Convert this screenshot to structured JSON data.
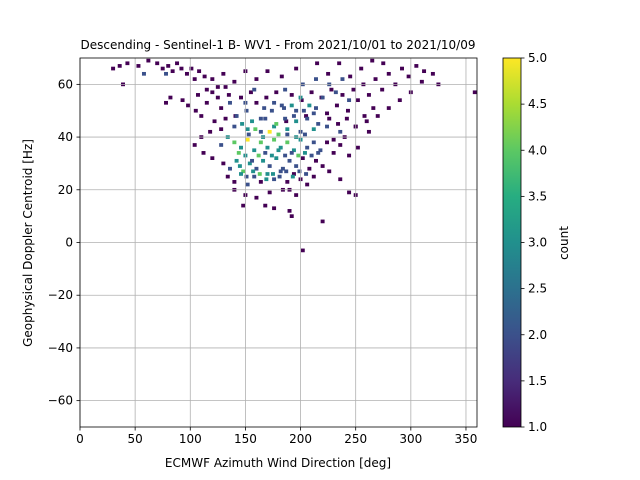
{
  "chart_data": {
    "type": "heatmap",
    "title": "Descending - Sentinel-1 B- WV1 - From 2021/10/01 to 2021/10/09",
    "xlabel": "ECMWF Azimuth Wind Direction [deg]",
    "ylabel": "Geophysical Doppler Centroid [Hz]",
    "xlim": [
      0,
      360
    ],
    "ylim": [
      -70,
      70
    ],
    "xticks": [
      "0",
      "50",
      "100",
      "150",
      "200",
      "250",
      "300",
      "350"
    ],
    "xtick_values": [
      0,
      50,
      100,
      150,
      200,
      250,
      300,
      350
    ],
    "yticks": [
      "60",
      "40",
      "20",
      "0",
      "−20",
      "−40",
      "−60"
    ],
    "ytick_values": [
      60,
      40,
      20,
      0,
      -20,
      -40,
      -60
    ],
    "grid": true,
    "bin_width_deg": 3.6,
    "bin_height_hz": 1.4,
    "colorbar": {
      "label": "count",
      "min": 1.0,
      "max": 5.0,
      "ticks": [
        "1.0",
        "1.5",
        "2.0",
        "2.5",
        "3.0",
        "3.5",
        "4.0",
        "4.5",
        "5.0"
      ],
      "tick_values": [
        1.0,
        1.5,
        2.0,
        2.5,
        3.0,
        3.5,
        4.0,
        4.5,
        5.0
      ],
      "colormap": "viridis"
    },
    "cells": [
      [
        30,
        66,
        1
      ],
      [
        36,
        67,
        1
      ],
      [
        43,
        68,
        1
      ],
      [
        53,
        67,
        1
      ],
      [
        58,
        64,
        2
      ],
      [
        62,
        69,
        1
      ],
      [
        70,
        68,
        1
      ],
      [
        75,
        66,
        1
      ],
      [
        78,
        64,
        2
      ],
      [
        80,
        67,
        1
      ],
      [
        84,
        65,
        1
      ],
      [
        88,
        68,
        1
      ],
      [
        92,
        66,
        1
      ],
      [
        97,
        64,
        1
      ],
      [
        101,
        66,
        1
      ],
      [
        104,
        62,
        1
      ],
      [
        108,
        65,
        1
      ],
      [
        113,
        63,
        1
      ],
      [
        39,
        60,
        1
      ],
      [
        82,
        55,
        1
      ],
      [
        78,
        53,
        1
      ],
      [
        93,
        54,
        1
      ],
      [
        98,
        52,
        1
      ],
      [
        105,
        50,
        1
      ],
      [
        120,
        57,
        1
      ],
      [
        125,
        55,
        1
      ],
      [
        128,
        51,
        1
      ],
      [
        132,
        59,
        1
      ],
      [
        136,
        53,
        2
      ],
      [
        141,
        48,
        1
      ],
      [
        146,
        55,
        1
      ],
      [
        151,
        50,
        2
      ],
      [
        155,
        57,
        1
      ],
      [
        160,
        53,
        1
      ],
      [
        164,
        47,
        2
      ],
      [
        169,
        55,
        1
      ],
      [
        174,
        50,
        2
      ],
      [
        178,
        57,
        1
      ],
      [
        183,
        52,
        2
      ],
      [
        187,
        46,
        1
      ],
      [
        192,
        56,
        1
      ],
      [
        196,
        50,
        2
      ],
      [
        201,
        54,
        1
      ],
      [
        205,
        48,
        1
      ],
      [
        210,
        57,
        1
      ],
      [
        214,
        51,
        2
      ],
      [
        219,
        55,
        1
      ],
      [
        224,
        49,
        1
      ],
      [
        228,
        58,
        1
      ],
      [
        233,
        52,
        1
      ],
      [
        238,
        56,
        1
      ],
      [
        243,
        50,
        1
      ],
      [
        248,
        58,
        1
      ],
      [
        252,
        54,
        1
      ],
      [
        257,
        60,
        1
      ],
      [
        262,
        56,
        1
      ],
      [
        268,
        62,
        1
      ],
      [
        274,
        58,
        1
      ],
      [
        280,
        64,
        1
      ],
      [
        286,
        60,
        1
      ],
      [
        292,
        66,
        1
      ],
      [
        298,
        63,
        1
      ],
      [
        305,
        67,
        1
      ],
      [
        312,
        65,
        1
      ],
      [
        320,
        64,
        1
      ],
      [
        325,
        60,
        1
      ],
      [
        358,
        57,
        1
      ],
      [
        245,
        63,
        1
      ],
      [
        255,
        66,
        1
      ],
      [
        235,
        68,
        1
      ],
      [
        265,
        69,
        1
      ],
      [
        275,
        68,
        1
      ],
      [
        215,
        68,
        1
      ],
      [
        225,
        64,
        1
      ],
      [
        196,
        66,
        1
      ],
      [
        183,
        63,
        1
      ],
      [
        170,
        65,
        1
      ],
      [
        160,
        62,
        1
      ],
      [
        150,
        65,
        1
      ],
      [
        140,
        61,
        1
      ],
      [
        130,
        64,
        1
      ],
      [
        120,
        62,
        1
      ],
      [
        310,
        61,
        1
      ],
      [
        300,
        57,
        1
      ],
      [
        290,
        54,
        1
      ],
      [
        280,
        51,
        1
      ],
      [
        270,
        48,
        1
      ],
      [
        260,
        46,
        1
      ],
      [
        250,
        44,
        1
      ],
      [
        262,
        42,
        1
      ],
      [
        236,
        42,
        2
      ],
      [
        224,
        44,
        2
      ],
      [
        212,
        43,
        3
      ],
      [
        200,
        42,
        2
      ],
      [
        188,
        43,
        3
      ],
      [
        176,
        44,
        3
      ],
      [
        164,
        42,
        2
      ],
      [
        152,
        43,
        3
      ],
      [
        140,
        44,
        2
      ],
      [
        128,
        43,
        1
      ],
      [
        118,
        42,
        1
      ],
      [
        110,
        40,
        1
      ],
      [
        104,
        37,
        1
      ],
      [
        112,
        34,
        1
      ],
      [
        120,
        32,
        1
      ],
      [
        128,
        37,
        2
      ],
      [
        134,
        40,
        3
      ],
      [
        140,
        38,
        4
      ],
      [
        146,
        36,
        3
      ],
      [
        152,
        39,
        5
      ],
      [
        158,
        35,
        3
      ],
      [
        164,
        38,
        4
      ],
      [
        170,
        36,
        3
      ],
      [
        176,
        39,
        4
      ],
      [
        182,
        36,
        3
      ],
      [
        188,
        38,
        4
      ],
      [
        194,
        35,
        3
      ],
      [
        200,
        39,
        3
      ],
      [
        206,
        36,
        2
      ],
      [
        212,
        38,
        2
      ],
      [
        218,
        35,
        2
      ],
      [
        224,
        38,
        1
      ],
      [
        230,
        34,
        1
      ],
      [
        236,
        37,
        1
      ],
      [
        244,
        33,
        1
      ],
      [
        252,
        36,
        1
      ],
      [
        142,
        48,
        2
      ],
      [
        156,
        46,
        3
      ],
      [
        168,
        47,
        2
      ],
      [
        178,
        45,
        4
      ],
      [
        186,
        47,
        2
      ],
      [
        196,
        46,
        3
      ],
      [
        206,
        47,
        2
      ],
      [
        216,
        45,
        2
      ],
      [
        226,
        47,
        1
      ],
      [
        122,
        46,
        1
      ],
      [
        132,
        47,
        1
      ],
      [
        200,
        55,
        3
      ],
      [
        192,
        52,
        3
      ],
      [
        186,
        58,
        2
      ],
      [
        208,
        52,
        3
      ],
      [
        220,
        55,
        2
      ],
      [
        232,
        57,
        2
      ],
      [
        244,
        54,
        2
      ],
      [
        238,
        62,
        2
      ],
      [
        226,
        60,
        2
      ],
      [
        214,
        62,
        2
      ],
      [
        202,
        60,
        2
      ],
      [
        150,
        53,
        2
      ],
      [
        158,
        58,
        2
      ],
      [
        130,
        30,
        1
      ],
      [
        136,
        28,
        2
      ],
      [
        142,
        31,
        3
      ],
      [
        148,
        27,
        4
      ],
      [
        154,
        30,
        3
      ],
      [
        160,
        28,
        2
      ],
      [
        166,
        31,
        3
      ],
      [
        172,
        29,
        2
      ],
      [
        178,
        32,
        3
      ],
      [
        184,
        28,
        2
      ],
      [
        190,
        31,
        2
      ],
      [
        196,
        29,
        2
      ],
      [
        202,
        32,
        1
      ],
      [
        208,
        28,
        1
      ],
      [
        214,
        31,
        1
      ],
      [
        220,
        29,
        1
      ],
      [
        226,
        27,
        1
      ],
      [
        134,
        25,
        1
      ],
      [
        140,
        23,
        1
      ],
      [
        146,
        26,
        3
      ],
      [
        152,
        22,
        2
      ],
      [
        158,
        25,
        2
      ],
      [
        164,
        23,
        1
      ],
      [
        170,
        26,
        3
      ],
      [
        176,
        24,
        2
      ],
      [
        182,
        27,
        2
      ],
      [
        188,
        23,
        1
      ],
      [
        194,
        26,
        1
      ],
      [
        200,
        24,
        1
      ],
      [
        206,
        22,
        1
      ],
      [
        212,
        25,
        1
      ],
      [
        236,
        24,
        1
      ],
      [
        244,
        19,
        1
      ],
      [
        250,
        18,
        1
      ],
      [
        140,
        20,
        1
      ],
      [
        150,
        18,
        1
      ],
      [
        160,
        17,
        1
      ],
      [
        172,
        19,
        1
      ],
      [
        184,
        20,
        1
      ],
      [
        196,
        18,
        1
      ],
      [
        190,
        20,
        1
      ],
      [
        168,
        14,
        1
      ],
      [
        176,
        13,
        1
      ],
      [
        190,
        12,
        1
      ],
      [
        192,
        10,
        1
      ],
      [
        220,
        8,
        1
      ],
      [
        148,
        14,
        1
      ],
      [
        202,
        -3,
        1
      ],
      [
        147,
        45,
        3
      ],
      [
        153,
        41,
        2
      ],
      [
        159,
        43,
        4
      ],
      [
        166,
        40,
        3
      ],
      [
        172,
        42,
        5
      ],
      [
        180,
        41,
        4
      ],
      [
        188,
        41,
        2
      ],
      [
        196,
        40,
        3
      ],
      [
        204,
        41,
        2
      ],
      [
        144,
        34,
        4
      ],
      [
        150,
        33,
        3
      ],
      [
        156,
        31,
        2
      ],
      [
        162,
        33,
        4
      ],
      [
        168,
        34,
        2
      ],
      [
        174,
        33,
        3
      ],
      [
        180,
        35,
        3
      ],
      [
        186,
        33,
        2
      ],
      [
        192,
        34,
        2
      ],
      [
        198,
        33,
        4
      ],
      [
        204,
        34,
        3
      ],
      [
        210,
        33,
        2
      ],
      [
        216,
        34,
        2
      ],
      [
        145,
        29,
        3
      ],
      [
        151,
        25,
        2
      ],
      [
        157,
        27,
        3
      ],
      [
        163,
        26,
        4
      ],
      [
        169,
        24,
        3
      ],
      [
        175,
        26,
        3
      ],
      [
        181,
        25,
        2
      ],
      [
        187,
        27,
        2
      ],
      [
        193,
        25,
        3
      ],
      [
        199,
        27,
        2
      ],
      [
        205,
        26,
        2
      ],
      [
        234,
        45,
        1
      ],
      [
        242,
        47,
        1
      ],
      [
        250,
        44,
        1
      ],
      [
        258,
        48,
        1
      ],
      [
        266,
        51,
        1
      ],
      [
        240,
        40,
        1
      ],
      [
        230,
        39,
        1
      ],
      [
        135,
        56,
        1
      ],
      [
        125,
        59,
        1
      ],
      [
        115,
        58,
        1
      ],
      [
        107,
        56,
        1
      ],
      [
        115,
        53,
        1
      ],
      [
        110,
        48,
        1
      ],
      [
        167,
        51,
        2
      ],
      [
        176,
        53,
        2
      ],
      [
        185,
        51,
        2
      ],
      [
        194,
        48,
        2
      ],
      [
        203,
        50,
        2
      ],
      [
        212,
        49,
        2
      ]
    ]
  }
}
